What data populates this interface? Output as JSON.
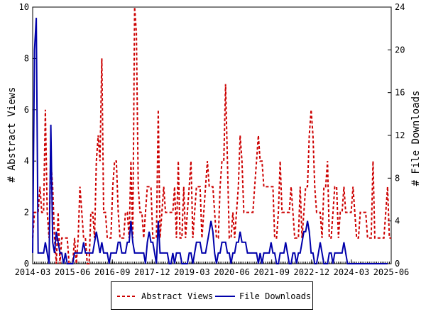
{
  "chart_data": {
    "type": "line",
    "title": "",
    "xlabel": "",
    "ylabel_left": "# Abstract Views",
    "ylabel_right": "# File Downloads",
    "ylim_left": [
      0,
      10
    ],
    "ylim_right": [
      0,
      24
    ],
    "yticks_left": [
      "0",
      "2",
      "4",
      "6",
      "8",
      "10"
    ],
    "yticks_right": [
      "0",
      "4",
      "8",
      "12",
      "16",
      "20",
      "24"
    ],
    "x_range": [
      "2014-03",
      "2025-06"
    ],
    "x_tick_labels": [
      "2014-03",
      "2015-06",
      "2016-09",
      "2017-12",
      "2019-03",
      "2020-06",
      "2021-09",
      "2022-12",
      "2024-03",
      "2025-06"
    ],
    "legend_placement": "bottom",
    "colors": {
      "abstract_views": "#cc0000",
      "file_downloads": "#0000aa"
    },
    "series": [
      {
        "name": "Abstract Views",
        "axis": "left",
        "style": "dashed",
        "values": [
          1,
          2,
          2,
          2,
          3,
          2,
          2,
          6,
          2,
          1,
          4,
          3,
          1,
          0,
          2,
          0,
          1,
          1,
          1,
          1,
          0,
          0,
          0,
          1,
          0,
          1,
          3,
          2,
          1,
          1,
          0,
          0,
          2,
          2,
          1,
          4,
          5,
          4,
          8,
          2,
          2,
          1,
          1,
          1,
          3,
          4,
          4,
          2,
          1,
          1,
          1,
          2,
          2,
          1,
          4,
          1,
          10,
          9,
          3,
          2,
          2,
          1,
          2,
          3,
          3,
          3,
          1,
          1,
          1,
          6,
          1,
          2,
          3,
          2,
          2,
          2,
          2,
          2,
          3,
          1,
          4,
          1,
          1,
          3,
          1,
          2,
          3,
          4,
          1,
          2,
          3,
          3,
          3,
          1,
          2,
          3,
          4,
          3,
          3,
          3,
          2,
          1,
          1,
          3,
          4,
          4,
          7,
          4,
          1,
          1,
          2,
          1,
          2,
          3,
          5,
          4,
          2,
          2,
          2,
          2,
          2,
          2,
          3,
          4,
          5,
          4,
          4,
          3,
          3,
          3,
          3,
          3,
          3,
          1,
          1,
          2,
          4,
          2,
          2,
          2,
          2,
          2,
          3,
          2,
          1,
          1,
          1,
          3,
          1,
          2,
          3,
          3,
          5,
          6,
          5,
          3,
          2,
          2,
          2,
          1,
          3,
          3,
          4,
          1,
          1,
          2,
          3,
          3,
          1,
          2,
          2,
          3,
          2,
          2,
          2,
          2,
          3,
          2,
          1,
          1,
          2,
          2,
          2,
          2,
          1,
          1,
          1,
          4,
          1,
          1,
          1,
          1,
          1,
          1,
          2,
          3,
          1,
          1
        ]
      },
      {
        "name": "File Downloads",
        "axis": "right",
        "style": "solid",
        "values": [
          1,
          20,
          23,
          1,
          1,
          1,
          1,
          2,
          1,
          0,
          13,
          2,
          1,
          3,
          2,
          1,
          1,
          0,
          1,
          0,
          0,
          0,
          0,
          1,
          1,
          1,
          1,
          1,
          2,
          1,
          1,
          1,
          1,
          1,
          2,
          3,
          2,
          1,
          2,
          1,
          1,
          1,
          0,
          1,
          1,
          1,
          1,
          2,
          2,
          1,
          1,
          1,
          2,
          2,
          4,
          2,
          1,
          1,
          1,
          1,
          1,
          1,
          0,
          2,
          3,
          2,
          2,
          1,
          0,
          4,
          1,
          1,
          1,
          1,
          1,
          0,
          0,
          1,
          0,
          1,
          1,
          1,
          0,
          0,
          0,
          0,
          1,
          1,
          0,
          1,
          2,
          2,
          2,
          1,
          1,
          1,
          2,
          3,
          4,
          3,
          1,
          0,
          1,
          1,
          2,
          2,
          2,
          1,
          1,
          0,
          1,
          1,
          2,
          2,
          3,
          2,
          2,
          2,
          1,
          1,
          1,
          1,
          1,
          1,
          0,
          1,
          0,
          1,
          1,
          1,
          1,
          2,
          1,
          1,
          0,
          0,
          1,
          1,
          1,
          2,
          1,
          0,
          0,
          1,
          1,
          0,
          1,
          1,
          2,
          3,
          3,
          4,
          3,
          1,
          1,
          0,
          0,
          1,
          2,
          1,
          0,
          0,
          0,
          1,
          1,
          0,
          1,
          1,
          1,
          1,
          1,
          2,
          1,
          0,
          0,
          0,
          0,
          0,
          0,
          0,
          0,
          0,
          0,
          0,
          0,
          0,
          0,
          0,
          0,
          0,
          0,
          0,
          0,
          0,
          0,
          0
        ]
      }
    ]
  }
}
